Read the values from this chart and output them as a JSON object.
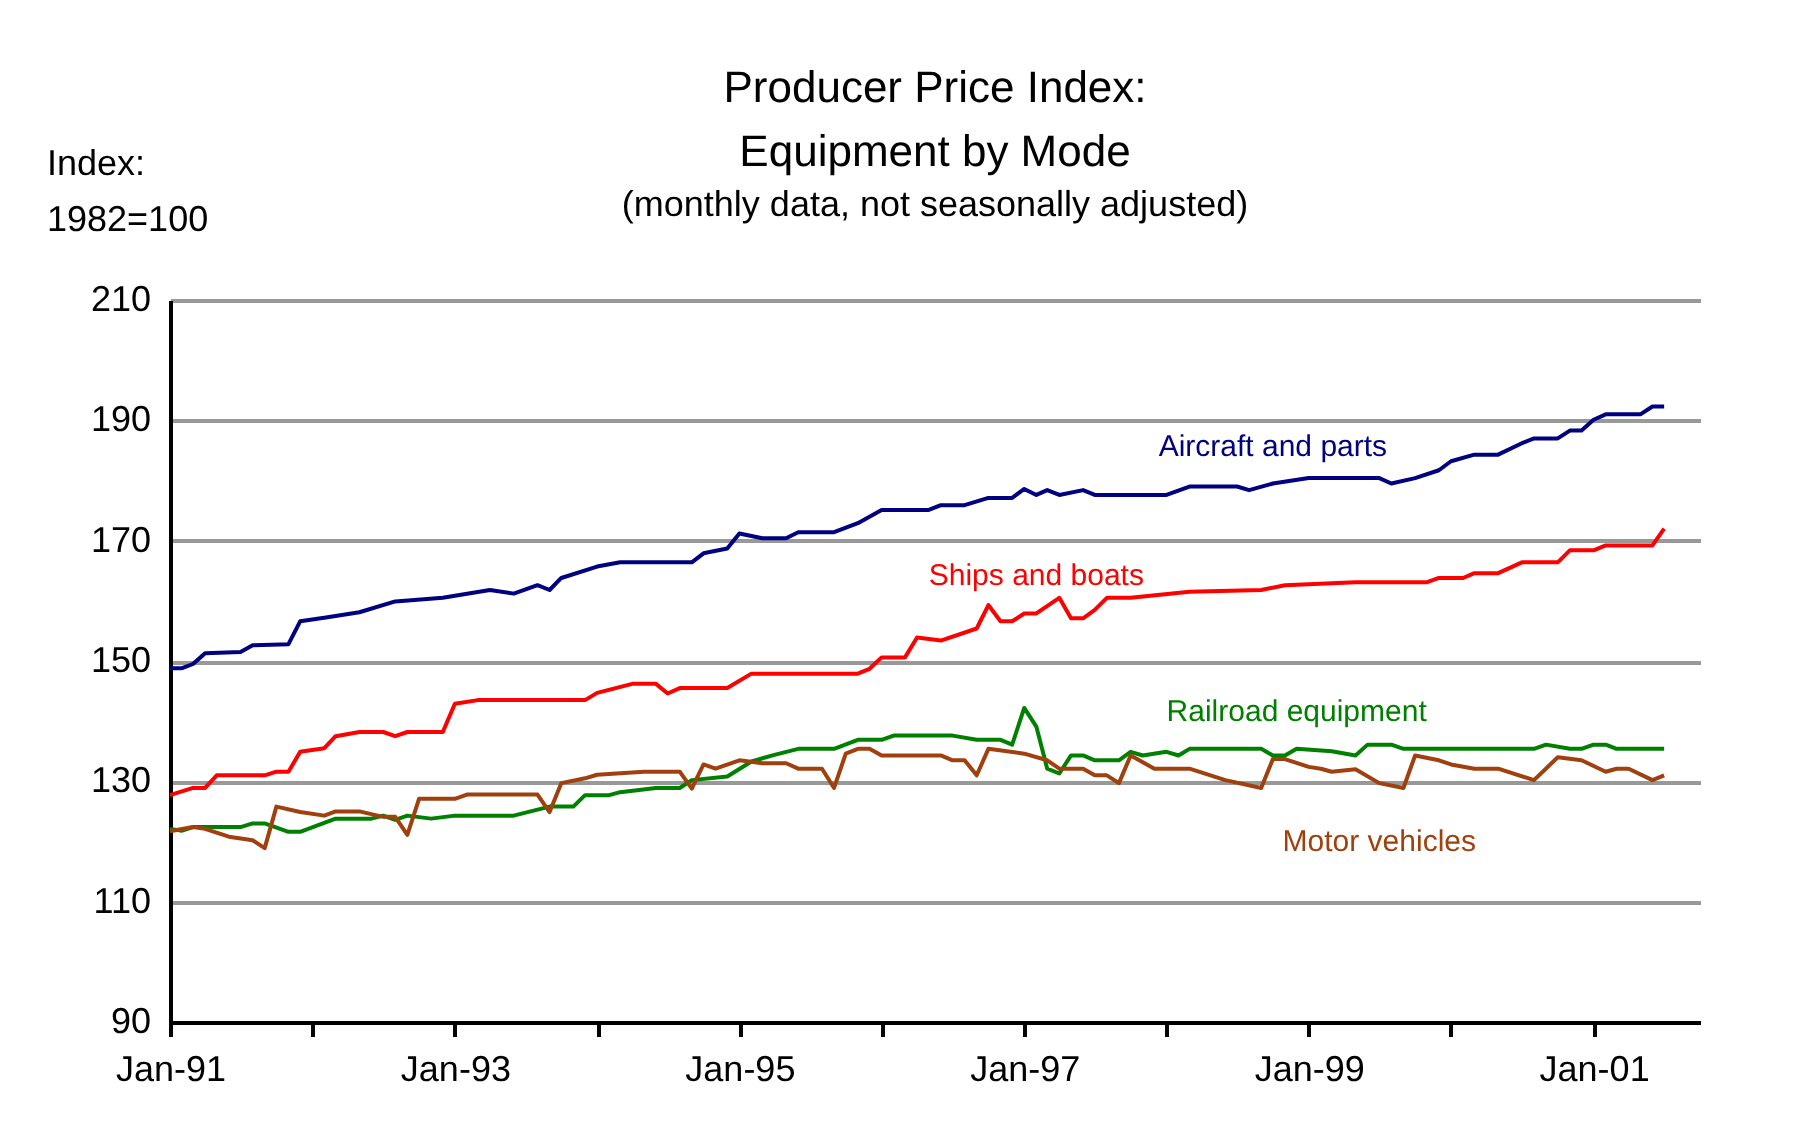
{
  "chart_data": {
    "type": "line",
    "title": "Producer Price Index:\nEquipment by Mode",
    "subtitle": "(monthly data, not seasonally adjusted)",
    "ylabel": "Index:\n1982=100",
    "xlim": [
      "1991-01",
      "2001-10"
    ],
    "xticks": [
      {
        "value": "1991-01",
        "label": "Jan-91"
      },
      {
        "value": "1992-01",
        "label": null
      },
      {
        "value": "1993-01",
        "label": "Jan-93"
      },
      {
        "value": "1994-01",
        "label": null
      },
      {
        "value": "1995-01",
        "label": "Jan-95"
      },
      {
        "value": "1996-01",
        "label": null
      },
      {
        "value": "1997-01",
        "label": "Jan-97"
      },
      {
        "value": "1998-01",
        "label": null
      },
      {
        "value": "1999-01",
        "label": "Jan-99"
      },
      {
        "value": "2000-01",
        "label": null
      },
      {
        "value": "2001-01",
        "label": "Jan-01"
      }
    ],
    "ylim": [
      90,
      210
    ],
    "yticks": [
      90,
      110,
      130,
      150,
      170,
      190,
      210
    ],
    "grid": "y",
    "legend": false,
    "marker": "none",
    "line_style": "solid",
    "series": [
      {
        "name": "Aircraft and parts",
        "color": "#000080",
        "x": [
          "1991-01",
          "1991-02",
          "1991-03",
          "1991-04",
          "1991-07",
          "1991-08",
          "1991-11",
          "1991-12",
          "1992-02",
          "1992-05",
          "1992-08",
          "1992-12",
          "1993-04",
          "1993-06",
          "1993-08",
          "1993-09",
          "1993-10",
          "1994-01",
          "1994-03",
          "1994-09",
          "1994-10",
          "1994-12",
          "1995-01",
          "1995-03",
          "1995-05",
          "1995-06",
          "1995-09",
          "1995-11",
          "1996-01",
          "1996-05",
          "1996-06",
          "1996-08",
          "1996-10",
          "1996-12",
          "1997-01",
          "1997-02",
          "1997-03",
          "1997-04",
          "1997-06",
          "1997-07",
          "1998-01",
          "1998-03",
          "1998-07",
          "1998-08",
          "1998-10",
          "1999-01",
          "1999-07",
          "1999-08",
          "1999-10",
          "1999-12",
          "2000-01",
          "2000-03",
          "2000-05",
          "2000-07",
          "2000-08",
          "2000-10",
          "2000-11",
          "2000-12",
          "2001-01",
          "2001-02",
          "2001-05",
          "2001-06",
          "2001-07"
        ],
        "values": [
          148.8,
          148.8,
          149.5,
          151.3,
          151.5,
          152.6,
          152.8,
          156.6,
          157.2,
          158.1,
          159.9,
          160.5,
          161.8,
          161.2,
          162.6,
          161.8,
          163.8,
          165.7,
          166.4,
          166.4,
          167.9,
          168.7,
          171.2,
          170.4,
          170.4,
          171.4,
          171.4,
          172.9,
          175.1,
          175.1,
          175.9,
          175.9,
          177.1,
          177.1,
          178.6,
          177.6,
          178.4,
          177.6,
          178.4,
          177.6,
          177.6,
          179.0,
          179.0,
          178.4,
          179.5,
          180.4,
          180.4,
          179.5,
          180.4,
          181.7,
          183.2,
          184.3,
          184.3,
          186.2,
          187.0,
          187.0,
          188.3,
          188.3,
          190.1,
          191.0,
          191.0,
          192.3,
          192.3
        ]
      },
      {
        "name": "Ships and boats",
        "color": "#ff0000",
        "x": [
          "1991-01",
          "1991-03",
          "1991-04",
          "1991-05",
          "1991-09",
          "1991-10",
          "1991-11",
          "1991-12",
          "1992-02",
          "1992-03",
          "1992-05",
          "1992-07",
          "1992-08",
          "1992-09",
          "1992-12",
          "1993-01",
          "1993-03",
          "1993-12",
          "1994-01",
          "1994-04",
          "1994-06",
          "1994-07",
          "1994-08",
          "1994-12",
          "1995-02",
          "1995-11",
          "1995-12",
          "1996-01",
          "1996-03",
          "1996-04",
          "1996-06",
          "1996-09",
          "1996-10",
          "1996-11",
          "1996-12",
          "1997-01",
          "1997-02",
          "1997-04",
          "1997-05",
          "1997-06",
          "1997-07",
          "1997-08",
          "1997-10",
          "1998-03",
          "1998-09",
          "1998-11",
          "1999-05",
          "1999-11",
          "1999-12",
          "2000-02",
          "2000-03",
          "2000-05",
          "2000-07",
          "2000-10",
          "2000-11",
          "2001-01",
          "2001-02",
          "2001-06",
          "2001-07"
        ],
        "values": [
          127.7,
          128.9,
          128.9,
          131.0,
          131.0,
          131.6,
          131.6,
          134.9,
          135.5,
          137.5,
          138.2,
          138.2,
          137.5,
          138.2,
          138.2,
          142.9,
          143.5,
          143.5,
          144.7,
          146.2,
          146.2,
          144.6,
          145.5,
          145.5,
          147.9,
          147.9,
          148.7,
          150.6,
          150.6,
          153.9,
          153.4,
          155.4,
          159.3,
          156.6,
          156.6,
          157.9,
          157.9,
          160.5,
          157.1,
          157.1,
          158.5,
          160.5,
          160.5,
          161.5,
          161.8,
          162.6,
          163.1,
          163.1,
          163.8,
          163.8,
          164.6,
          164.6,
          166.4,
          166.4,
          168.4,
          168.4,
          169.2,
          169.2,
          172.0
        ]
      },
      {
        "name": "Railroad equipment",
        "color": "#008000",
        "x": [
          "1991-01",
          "1991-02",
          "1991-03",
          "1991-07",
          "1991-08",
          "1991-09",
          "1991-11",
          "1991-12",
          "1992-03",
          "1992-06",
          "1992-07",
          "1992-08",
          "1992-09",
          "1992-11",
          "1993-01",
          "1993-06",
          "1993-09",
          "1993-11",
          "1993-12",
          "1994-02",
          "1994-03",
          "1994-06",
          "1994-08",
          "1994-09",
          "1994-12",
          "1995-02",
          "1995-04",
          "1995-06",
          "1995-09",
          "1995-11",
          "1996-01",
          "1996-02",
          "1996-07",
          "1996-09",
          "1996-11",
          "1996-12",
          "1997-01",
          "1997-02",
          "1997-03",
          "1997-04",
          "1997-05",
          "1997-06",
          "1997-07",
          "1997-09",
          "1997-10",
          "1997-11",
          "1998-01",
          "1998-02",
          "1998-03",
          "1998-09",
          "1998-10",
          "1998-11",
          "1998-12",
          "1999-03",
          "1999-05",
          "1999-06",
          "1999-08",
          "1999-09",
          "2000-08",
          "2000-09",
          "2000-11",
          "2000-12",
          "2001-01",
          "2001-02",
          "2001-03",
          "2001-07"
        ],
        "values": [
          122.1,
          121.8,
          122.4,
          122.4,
          123.0,
          123.0,
          121.6,
          121.6,
          123.8,
          123.8,
          124.3,
          123.6,
          124.3,
          123.8,
          124.3,
          124.3,
          125.8,
          125.8,
          127.7,
          127.7,
          128.2,
          128.9,
          128.9,
          130.2,
          130.8,
          133.3,
          134.4,
          135.4,
          135.4,
          136.9,
          136.9,
          137.6,
          137.6,
          136.9,
          136.9,
          136.1,
          142.2,
          139.1,
          132.1,
          131.3,
          134.3,
          134.3,
          133.5,
          133.5,
          134.9,
          134.3,
          134.9,
          134.3,
          135.4,
          135.4,
          134.3,
          134.3,
          135.4,
          135.0,
          134.3,
          136.1,
          136.1,
          135.4,
          135.4,
          136.1,
          135.4,
          135.4,
          136.1,
          136.1,
          135.4,
          135.4
        ]
      },
      {
        "name": "Motor vehicles",
        "color": "#a0400f",
        "x": [
          "1991-01",
          "1991-03",
          "1991-04",
          "1991-06",
          "1991-08",
          "1991-09",
          "1991-10",
          "1991-12",
          "1992-02",
          "1992-03",
          "1992-05",
          "1992-07",
          "1992-08",
          "1992-09",
          "1992-10",
          "1993-01",
          "1993-02",
          "1993-08",
          "1993-09",
          "1993-10",
          "1993-12",
          "1994-01",
          "1994-05",
          "1994-08",
          "1994-09",
          "1994-10",
          "1994-11",
          "1995-01",
          "1995-03",
          "1995-05",
          "1995-06",
          "1995-08",
          "1995-09",
          "1995-10",
          "1995-11",
          "1995-12",
          "1996-01",
          "1996-06",
          "1996-07",
          "1996-08",
          "1996-09",
          "1996-10",
          "1997-01",
          "1997-03",
          "1997-04",
          "1997-06",
          "1997-07",
          "1997-08",
          "1997-09",
          "1997-10",
          "1997-12",
          "1998-03",
          "1998-06",
          "1998-09",
          "1998-10",
          "1998-11",
          "1999-01",
          "1999-02",
          "1999-03",
          "1999-05",
          "1999-07",
          "1999-09",
          "1999-10",
          "1999-12",
          "2000-01",
          "2000-03",
          "2000-05",
          "2000-08",
          "2000-10",
          "2000-12",
          "2001-02",
          "2001-03",
          "2001-04",
          "2001-06",
          "2001-07"
        ],
        "values": [
          121.7,
          122.4,
          122.1,
          120.8,
          120.2,
          118.9,
          125.8,
          124.9,
          124.3,
          125.0,
          125.0,
          124.1,
          124.1,
          121.1,
          127.1,
          127.1,
          127.8,
          127.8,
          124.9,
          129.7,
          130.5,
          131.1,
          131.6,
          131.6,
          128.8,
          132.8,
          132.1,
          133.5,
          133.0,
          133.0,
          132.1,
          132.1,
          128.9,
          134.6,
          135.4,
          135.4,
          134.3,
          134.3,
          133.5,
          133.5,
          131.0,
          135.4,
          134.6,
          133.5,
          132.1,
          132.1,
          131.0,
          131.0,
          129.7,
          134.3,
          132.1,
          132.1,
          130.2,
          128.9,
          133.7,
          133.7,
          132.4,
          132.1,
          131.6,
          132.0,
          129.7,
          128.9,
          134.3,
          133.5,
          132.8,
          132.1,
          132.1,
          130.2,
          134.0,
          133.5,
          131.6,
          132.1,
          132.1,
          130.2,
          131.0
        ]
      }
    ]
  }
}
